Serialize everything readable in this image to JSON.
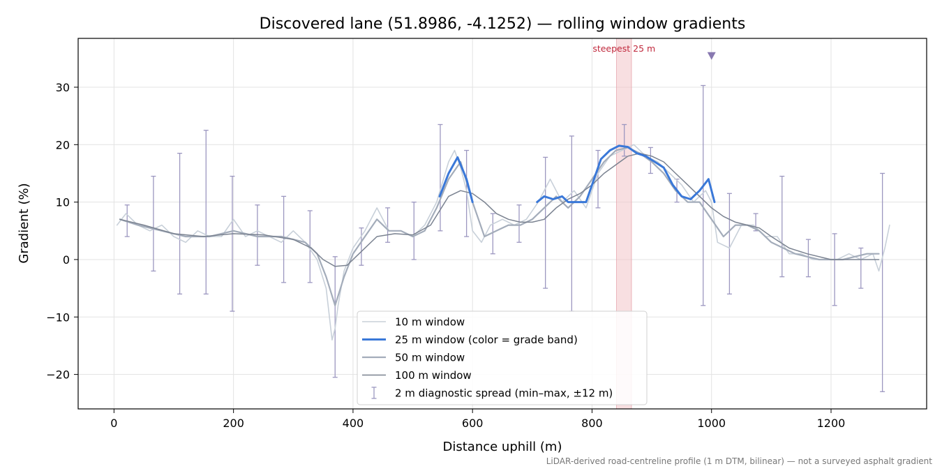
{
  "chart_data": {
    "type": "line",
    "title": "Discovered lane (51.8986, -4.1252) — rolling window gradients",
    "xlabel": "Distance uphill (m)",
    "ylabel": "Gradient (%)",
    "xlim": [
      -60,
      1360
    ],
    "ylim": [
      -26,
      38.5
    ],
    "xticks": [
      0,
      200,
      400,
      600,
      800,
      1000,
      1200
    ],
    "yticks": [
      -20,
      -10,
      0,
      10,
      20,
      30
    ],
    "grid": true,
    "legend_position": "bottom-center",
    "footnote": "LiDAR-derived road-centreline profile (1 m DTM, bilinear) — not a surveyed asphalt gradient",
    "annotation": {
      "label": "steepest 25 m",
      "x_start": 841,
      "x_end": 866,
      "marker_x": 1000,
      "marker_y": 35.5,
      "marker_color": "#8878b0",
      "band_color": "#f2c4c8"
    },
    "series": [
      {
        "name": "10 m window",
        "color": "#c8d0d9",
        "x": [
          5,
          20,
          40,
          60,
          80,
          100,
          120,
          140,
          160,
          180,
          200,
          220,
          240,
          260,
          280,
          300,
          320,
          340,
          355,
          365,
          370,
          375,
          385,
          400,
          420,
          440,
          460,
          480,
          500,
          520,
          540,
          560,
          570,
          580,
          590,
          600,
          615,
          630,
          650,
          670,
          690,
          710,
          730,
          750,
          770,
          790,
          810,
          830,
          850,
          870,
          890,
          910,
          930,
          950,
          970,
          990,
          1000,
          1010,
          1030,
          1050,
          1070,
          1090,
          1110,
          1130,
          1150,
          1170,
          1190,
          1210,
          1230,
          1250,
          1270,
          1280,
          1290,
          1298
        ],
        "values": [
          6,
          8,
          6,
          5,
          6,
          4,
          3,
          5,
          4,
          4,
          7,
          4,
          5,
          4,
          3,
          5,
          3,
          0,
          -5,
          -14,
          -12,
          -8,
          -2,
          2,
          5,
          9,
          5,
          5,
          4,
          6,
          10,
          17,
          19,
          16,
          12,
          5,
          3,
          6,
          7,
          6,
          7,
          10,
          14,
          10,
          12,
          9,
          15,
          18,
          19,
          20,
          18,
          17,
          15,
          13,
          10,
          12,
          10,
          3,
          2,
          6,
          6,
          4,
          4,
          1,
          1,
          0,
          0,
          0,
          1,
          0,
          1,
          -2,
          2,
          6
        ]
      },
      {
        "name": "25 m window (color = grade band)",
        "color": "#3a78d8",
        "x": [
          545,
          560,
          575,
          590,
          600,
          708,
          720,
          735,
          750,
          760,
          775,
          790,
          800,
          815,
          830,
          845,
          860,
          875,
          890,
          905,
          920,
          935,
          950,
          965,
          980,
          995,
          1005
        ],
        "values": [
          11,
          15,
          17.8,
          14,
          10,
          10,
          11,
          10.5,
          11,
          10,
          10,
          10,
          13,
          17.5,
          19,
          19.8,
          19.6,
          18.5,
          18,
          17,
          16,
          13,
          11,
          10.5,
          12,
          14,
          10
        ]
      },
      {
        "name": "50 m window",
        "color": "#a3acba",
        "x": [
          10,
          40,
          80,
          120,
          160,
          200,
          240,
          280,
          320,
          340,
          355,
          370,
          385,
          400,
          420,
          440,
          460,
          480,
          500,
          520,
          540,
          560,
          580,
          600,
          620,
          640,
          660,
          680,
          700,
          720,
          740,
          760,
          780,
          800,
          820,
          840,
          860,
          880,
          900,
          920,
          940,
          960,
          980,
          1000,
          1020,
          1040,
          1060,
          1080,
          1100,
          1120,
          1140,
          1160,
          1180,
          1200,
          1220,
          1240,
          1260,
          1280
        ],
        "values": [
          7,
          6,
          5,
          4,
          4,
          5,
          4,
          4,
          3,
          1,
          -3,
          -8,
          -3,
          1,
          4,
          7,
          5,
          5,
          4,
          5,
          9,
          14,
          17,
          10,
          4,
          5,
          6,
          6,
          7,
          9,
          11,
          9,
          11,
          14,
          17,
          19,
          19.5,
          18.5,
          17,
          15,
          12,
          10,
          10,
          7,
          4,
          6,
          6,
          5,
          3,
          2,
          1,
          0.5,
          0,
          0,
          0,
          0.5,
          1,
          1
        ]
      },
      {
        "name": "100 m window",
        "color": "#7a8290",
        "x": [
          10,
          50,
          100,
          150,
          200,
          250,
          300,
          330,
          350,
          370,
          390,
          410,
          440,
          470,
          500,
          530,
          560,
          580,
          600,
          620,
          640,
          660,
          680,
          700,
          720,
          740,
          760,
          780,
          800,
          820,
          840,
          860,
          880,
          900,
          920,
          940,
          960,
          980,
          1000,
          1020,
          1040,
          1060,
          1080,
          1100,
          1130,
          1160,
          1200,
          1240,
          1280
        ],
        "values": [
          7,
          6,
          4.5,
          4,
          4.5,
          4.3,
          3.5,
          2,
          0,
          -1.2,
          -1,
          1,
          4,
          4.5,
          4.3,
          6,
          11,
          12,
          11.5,
          10,
          8,
          7,
          6.5,
          6.5,
          7,
          9,
          10.5,
          11.5,
          13,
          15,
          16.5,
          18,
          18.5,
          18,
          17,
          15,
          13,
          11,
          9,
          7.5,
          6.5,
          6,
          5.5,
          4,
          2,
          1,
          0,
          0,
          0
        ]
      }
    ],
    "errorbars": {
      "name": "2 m diagnostic spread (min–max, ±12 m)",
      "color": "#9c97c0",
      "x": [
        22,
        66,
        110,
        154,
        198,
        240,
        284,
        328,
        370,
        414,
        458,
        502,
        546,
        590,
        634,
        678,
        722,
        766,
        810,
        854,
        898,
        942,
        986,
        1030,
        1074,
        1118,
        1162,
        1206,
        1250,
        1286
      ],
      "low": [
        4,
        -2,
        -6,
        -6,
        -9,
        -1,
        -4,
        -4,
        -20.5,
        -1,
        3,
        0,
        5,
        4,
        1,
        3,
        -5,
        -9,
        9,
        18,
        15,
        10,
        -8,
        -6,
        5,
        -3,
        -3,
        -8,
        -5,
        -23
      ],
      "high": [
        9.5,
        14.5,
        18.5,
        22.5,
        14.5,
        9.5,
        11,
        8.5,
        0.5,
        5.5,
        9,
        10,
        23.5,
        19,
        8,
        9.5,
        17.8,
        21.5,
        19,
        23.5,
        19.5,
        14,
        30.3,
        11.5,
        8,
        14.5,
        3.5,
        4.5,
        2,
        15
      ]
    }
  }
}
